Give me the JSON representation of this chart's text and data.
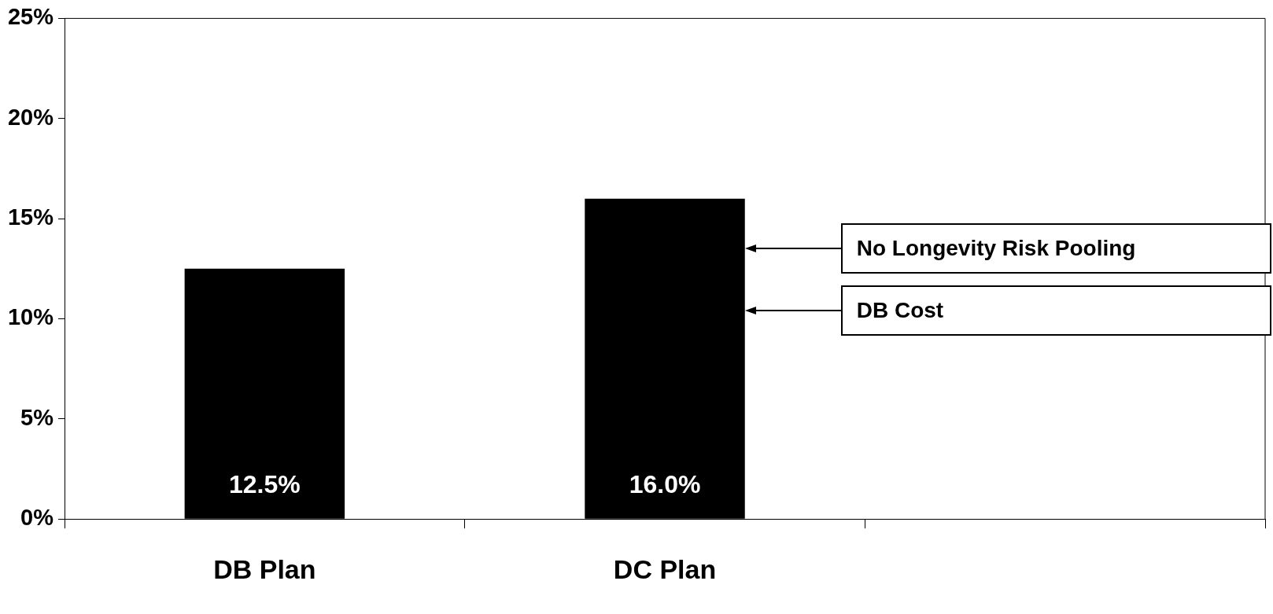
{
  "chart_data": {
    "type": "bar",
    "categories": [
      "DB Plan",
      "DC Plan",
      null
    ],
    "series": [
      {
        "color": "#000000",
        "values": [
          12.5,
          16.0,
          null
        ],
        "value_labels": [
          "12.5%",
          "16.0%",
          null
        ]
      }
    ],
    "ylim": [
      0,
      25
    ],
    "yticks": [
      {
        "value": 0,
        "label": "0%"
      },
      {
        "value": 5,
        "label": "5%"
      },
      {
        "value": 10,
        "label": "10%"
      },
      {
        "value": 15,
        "label": "15%"
      },
      {
        "value": 20,
        "label": "20%"
      },
      {
        "value": 25,
        "label": "25%"
      }
    ],
    "annotations": [
      "No Longevity Risk Pooling",
      "DB Cost"
    ],
    "grid": false,
    "legend": false
  }
}
